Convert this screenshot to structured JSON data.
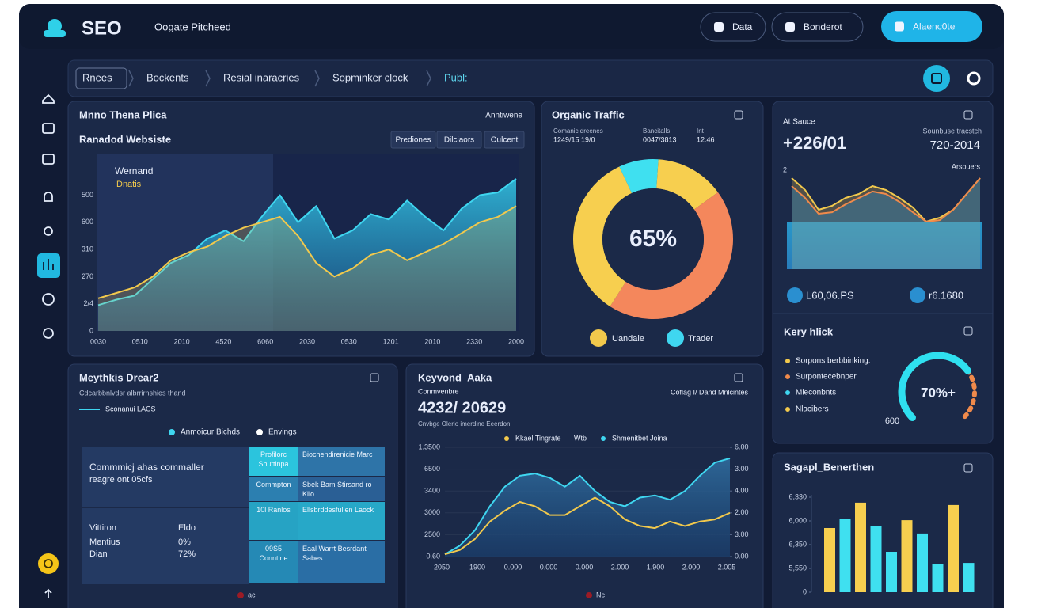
{
  "header": {
    "logo": "SEO",
    "title": "Oogate Pitcheed",
    "buttons": [
      "Data",
      "Bonderot",
      "Alaenc0te"
    ]
  },
  "breadcrumbs": [
    "Rnees",
    "Bockents",
    "Resial inaracries",
    "Sopminker clock",
    "Publ:"
  ],
  "website_panel": {
    "title": "Mnno Thena Plica",
    "corner": "Anntiwene",
    "subtitle": "Ranadod Websiste",
    "tabs": [
      "Prediones",
      "Dilciaors",
      "Oulcent"
    ],
    "chart_data": {
      "type": "area",
      "x_labels": [
        "0030",
        "0510",
        "2010",
        "4520",
        "6060",
        "2030",
        "0530",
        "1201",
        "2010",
        "2330",
        "2000"
      ],
      "ylim": [
        0,
        6.5
      ],
      "yticks": [
        0,
        {
          "value": 1,
          "label": "2/4"
        },
        {
          "value": 2,
          "label": "270"
        },
        {
          "value": 3,
          "label": "310"
        },
        {
          "value": 4,
          "label": "600"
        },
        {
          "value": 5,
          "label": "500"
        }
      ],
      "series": [
        {
          "name": "Wernand",
          "color": "#3fd6f0",
          "values": [
            0.95,
            1.15,
            1.3,
            1.9,
            2.5,
            2.8,
            3.4,
            3.7,
            3.3,
            4.2,
            5.0,
            4.0,
            4.6,
            3.4,
            3.7,
            4.3,
            4.1,
            4.8,
            4.2,
            3.7,
            4.5,
            5.0,
            5.1,
            5.6
          ]
        },
        {
          "name": "Dnatis",
          "color": "#f2c94c",
          "values": [
            1.2,
            1.4,
            1.6,
            2.0,
            2.6,
            2.9,
            3.1,
            3.5,
            3.8,
            4.0,
            4.2,
            3.5,
            2.5,
            2.0,
            2.3,
            2.8,
            3.0,
            2.6,
            2.9,
            3.2,
            3.6,
            4.0,
            4.2,
            4.6
          ]
        }
      ]
    }
  },
  "traffic_panel": {
    "title": "Organic Traffic",
    "stats": [
      {
        "label": "Comanic dreenes",
        "value": "1249/15 19/0"
      },
      {
        "label": "Bancitalls",
        "value": "0047/3813"
      },
      {
        "label": "Int",
        "value": "12.46"
      }
    ],
    "chart_data": {
      "type": "donut",
      "center_label": "65%",
      "values": [
        8,
        14,
        44,
        34
      ],
      "colors": [
        "#3fe0f0",
        "#f7cf4f",
        "#f4875c",
        "#f7cf4f"
      ],
      "legend": [
        {
          "name": "Uandale",
          "color": "#f2c94c"
        },
        {
          "name": "Trader",
          "color": "#3fd6f0"
        }
      ]
    }
  },
  "source_panel": {
    "label": "At Sauce",
    "value": "+226/01",
    "right_label": "Sounbuse tracstch",
    "right_value": "720-2014",
    "chart_label": "Arsouers",
    "chart_data": {
      "type": "line",
      "ylim": [
        0,
        2
      ],
      "yticks": [
        2
      ],
      "series": [
        {
          "color": "#f2c94c",
          "values": [
            1.84,
            1.6,
            1.2,
            1.28,
            1.44,
            1.52,
            1.68,
            1.6,
            1.44,
            1.25,
            0.96,
            1.04,
            1.2,
            1.52,
            1.84
          ]
        },
        {
          "color": "#f08a4b",
          "values": [
            1.68,
            1.44,
            1.12,
            1.15,
            1.31,
            1.44,
            1.57,
            1.52,
            1.36,
            1.15,
            0.96,
            0.99,
            1.2,
            1.52,
            1.84
          ]
        }
      ]
    },
    "footer": [
      "L60,06.PS",
      "r6.1680"
    ]
  },
  "key_panel": {
    "title": "Kery hlick",
    "items": [
      {
        "text": "Sorpons berbbinking.",
        "color": "#f2c94c"
      },
      {
        "text": "Surpontecebnper",
        "color": "#f08a4b"
      },
      {
        "text": "Mieconbnts",
        "color": "#3fd6f0"
      },
      {
        "text": "Nlacibers",
        "color": "#f2c94c"
      }
    ],
    "gauge": {
      "value": 70,
      "label": "70%+"
    },
    "note": "600"
  },
  "breakdown_panel": {
    "title": "Meythkis Drear2",
    "subtitle": "Cdcarbbnlvdsr albrrirnshies thand",
    "line_legend": "Sconanui LACS",
    "legend": [
      {
        "name": "Anmoicur Bichds",
        "color": "#3fd6f0"
      },
      {
        "name": "Envings",
        "color": "#ffffff"
      }
    ],
    "table": {
      "heading": [
        "Commmicj ahas commaller",
        "reagre ont 05cfs"
      ],
      "rows": [
        [
          "Vittiron",
          "Eldo"
        ],
        [
          "Mentius",
          "0%"
        ],
        [
          "Dian",
          "72%"
        ]
      ],
      "cells": [
        [
          "Profilorc Shuttinpa",
          "Biochendirenicie Marc"
        ],
        [
          "Commpton",
          "Sbek Bam Stirsand ro Kilo"
        ],
        [
          "10l Ranlos",
          "Ellsbrddesfullen Laock"
        ],
        [
          "09S5 Conntine",
          "Eaal Warrt Besrdant Sabes"
        ]
      ]
    },
    "footer": "ac"
  },
  "keyword_panel": {
    "title": "Keyvond_Aaka",
    "label": "Conmvenbre",
    "value": "4232/ 20629",
    "note": "Cnvbge Olerio imerdine Eeerdon",
    "corner": "Coflag I/ Dand Mnlcintes",
    "legend_note": "Wtb",
    "chart_data": {
      "type": "area",
      "x_labels": [
        "2050",
        "1900",
        "0.000",
        "0.000",
        "0.000",
        "2.000",
        "1.900",
        "2.000",
        "2.005"
      ],
      "ylim": [
        0,
        5
      ],
      "yticks": [
        {
          "value": 0,
          "label": "0.60"
        },
        {
          "value": 1,
          "label": "2500"
        },
        {
          "value": 2,
          "label": "3000"
        },
        {
          "value": 3,
          "label": "3400"
        },
        {
          "value": 4,
          "label": "6500"
        },
        {
          "value": 5,
          "label": "1.3500"
        }
      ],
      "y2lim": [
        0,
        5
      ],
      "y2ticks": [
        {
          "value": 0,
          "label": "0.00"
        },
        {
          "value": 1,
          "label": "3.00"
        },
        {
          "value": 2,
          "label": "2.00"
        },
        {
          "value": 3,
          "label": "4.00"
        },
        {
          "value": 4,
          "label": "3.00"
        },
        {
          "value": 5,
          "label": "6.00"
        }
      ],
      "series": [
        {
          "name": "Shmenitbet Joina",
          "color": "#3fd6f0",
          "values": [
            0.1,
            0.5,
            1.2,
            2.3,
            3.2,
            3.7,
            3.8,
            3.6,
            3.2,
            3.7,
            3.0,
            2.5,
            2.3,
            2.7,
            2.8,
            2.6,
            3.0,
            3.7,
            4.3,
            4.5
          ]
        },
        {
          "name": "Kkael Tingrate",
          "color": "#f2c94c",
          "values": [
            0.1,
            0.3,
            0.8,
            1.6,
            2.1,
            2.5,
            2.3,
            1.9,
            1.9,
            2.3,
            2.7,
            2.3,
            1.7,
            1.4,
            1.3,
            1.6,
            1.4,
            1.6,
            1.7,
            2.0
          ]
        }
      ]
    },
    "footer": "Nc"
  },
  "bar_panel": {
    "title": "Sagapl_Benerthen",
    "chart_data": {
      "type": "bar",
      "ylim": [
        0,
        4.1
      ],
      "yticks": [
        0,
        {
          "value": 1,
          "label": "5,550"
        },
        {
          "value": 2,
          "label": "6,350"
        },
        {
          "value": 3,
          "label": "6,000"
        },
        {
          "value": 4,
          "label": "6,330"
        }
      ],
      "values": [
        2.7,
        3.1,
        3.77,
        2.77,
        1.7,
        3.03,
        2.47,
        1.2,
        3.67,
        1.23
      ],
      "colors": [
        "#f7cf4f",
        "#3fe0f0",
        "#f7cf4f",
        "#3fe0f0",
        "#3fe0f0",
        "#f7cf4f",
        "#3fe0f0",
        "#3fe0f0",
        "#f7cf4f",
        "#3fe0f0"
      ]
    }
  }
}
